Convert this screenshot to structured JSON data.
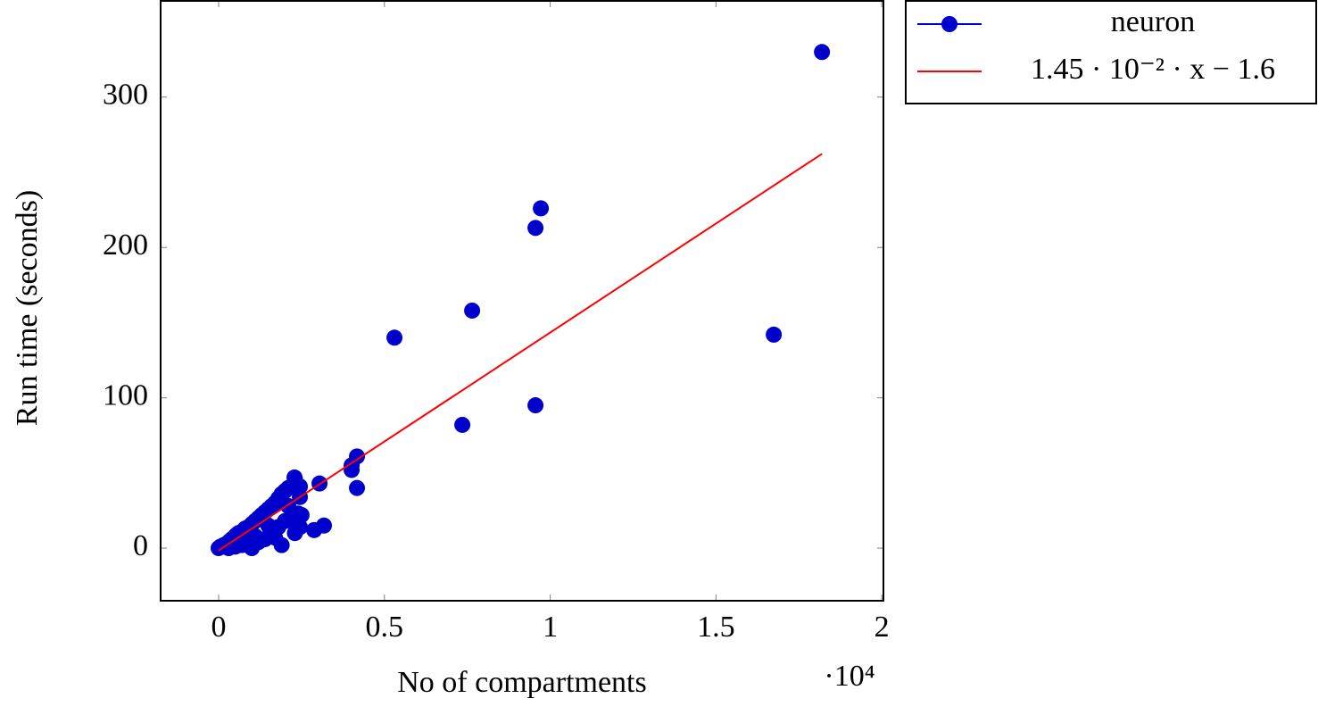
{
  "chart_data": {
    "type": "scatter",
    "xlabel": "No of compartments",
    "ylabel": "Run time (seconds)",
    "x_multiplier": "·10⁴",
    "xlim": [
      -1750,
      20050
    ],
    "ylim": [
      -35,
      364
    ],
    "xticks": [
      0,
      {
        "value": 5000,
        "label": "0.5"
      },
      {
        "value": 10000,
        "label": "1"
      },
      {
        "value": 15000,
        "label": "1.5"
      },
      {
        "value": 20000,
        "label": "2"
      }
    ],
    "yticks": [
      0,
      100,
      200,
      300
    ],
    "legend": "outside-top-right",
    "series": [
      {
        "name": "neuron",
        "color": "#0000cc",
        "mode": "markers",
        "x": [
          18196,
          9717,
          9556,
          7645,
          5303,
          16743,
          9556,
          7349,
          4172,
          4011,
          4011,
          4172,
          3042,
          3176,
          2880,
          2288,
          2450,
          2450,
          0,
          30,
          60,
          100,
          150,
          200,
          250,
          300,
          350,
          400,
          450,
          500,
          550,
          600,
          700,
          800,
          900,
          1000,
          1100,
          1200,
          1300,
          1400,
          1500,
          1600,
          1700,
          1800,
          1900,
          2000,
          2100,
          2300,
          2350,
          300,
          500,
          700,
          900,
          1000,
          1200,
          1400,
          1600,
          1800,
          2000,
          2200,
          2400,
          2500,
          1900,
          2300,
          2450,
          1700,
          2100,
          1500,
          1100,
          800
        ],
        "values": [
          330,
          226,
          213,
          158,
          140,
          142,
          95,
          82,
          61,
          55,
          52,
          40,
          43,
          15,
          12,
          47,
          41,
          34,
          0,
          0.5,
          1,
          1,
          2,
          2,
          3,
          4,
          5,
          6,
          6,
          8,
          9,
          10,
          11,
          13,
          14,
          16,
          18,
          20,
          22,
          24,
          26,
          28,
          30,
          33,
          36,
          38,
          40,
          46,
          42,
          0,
          1,
          2,
          3,
          0,
          4,
          6,
          10,
          14,
          18,
          20,
          23,
          22,
          2,
          10,
          14,
          7,
          28,
          15,
          8,
          5
        ]
      },
      {
        "name": "1.45 · 10⁻² · x − 1.6",
        "color": "#ff0000",
        "mode": "line",
        "x": [
          0,
          18200
        ],
        "values": [
          -1.6,
          262.3
        ]
      }
    ]
  }
}
